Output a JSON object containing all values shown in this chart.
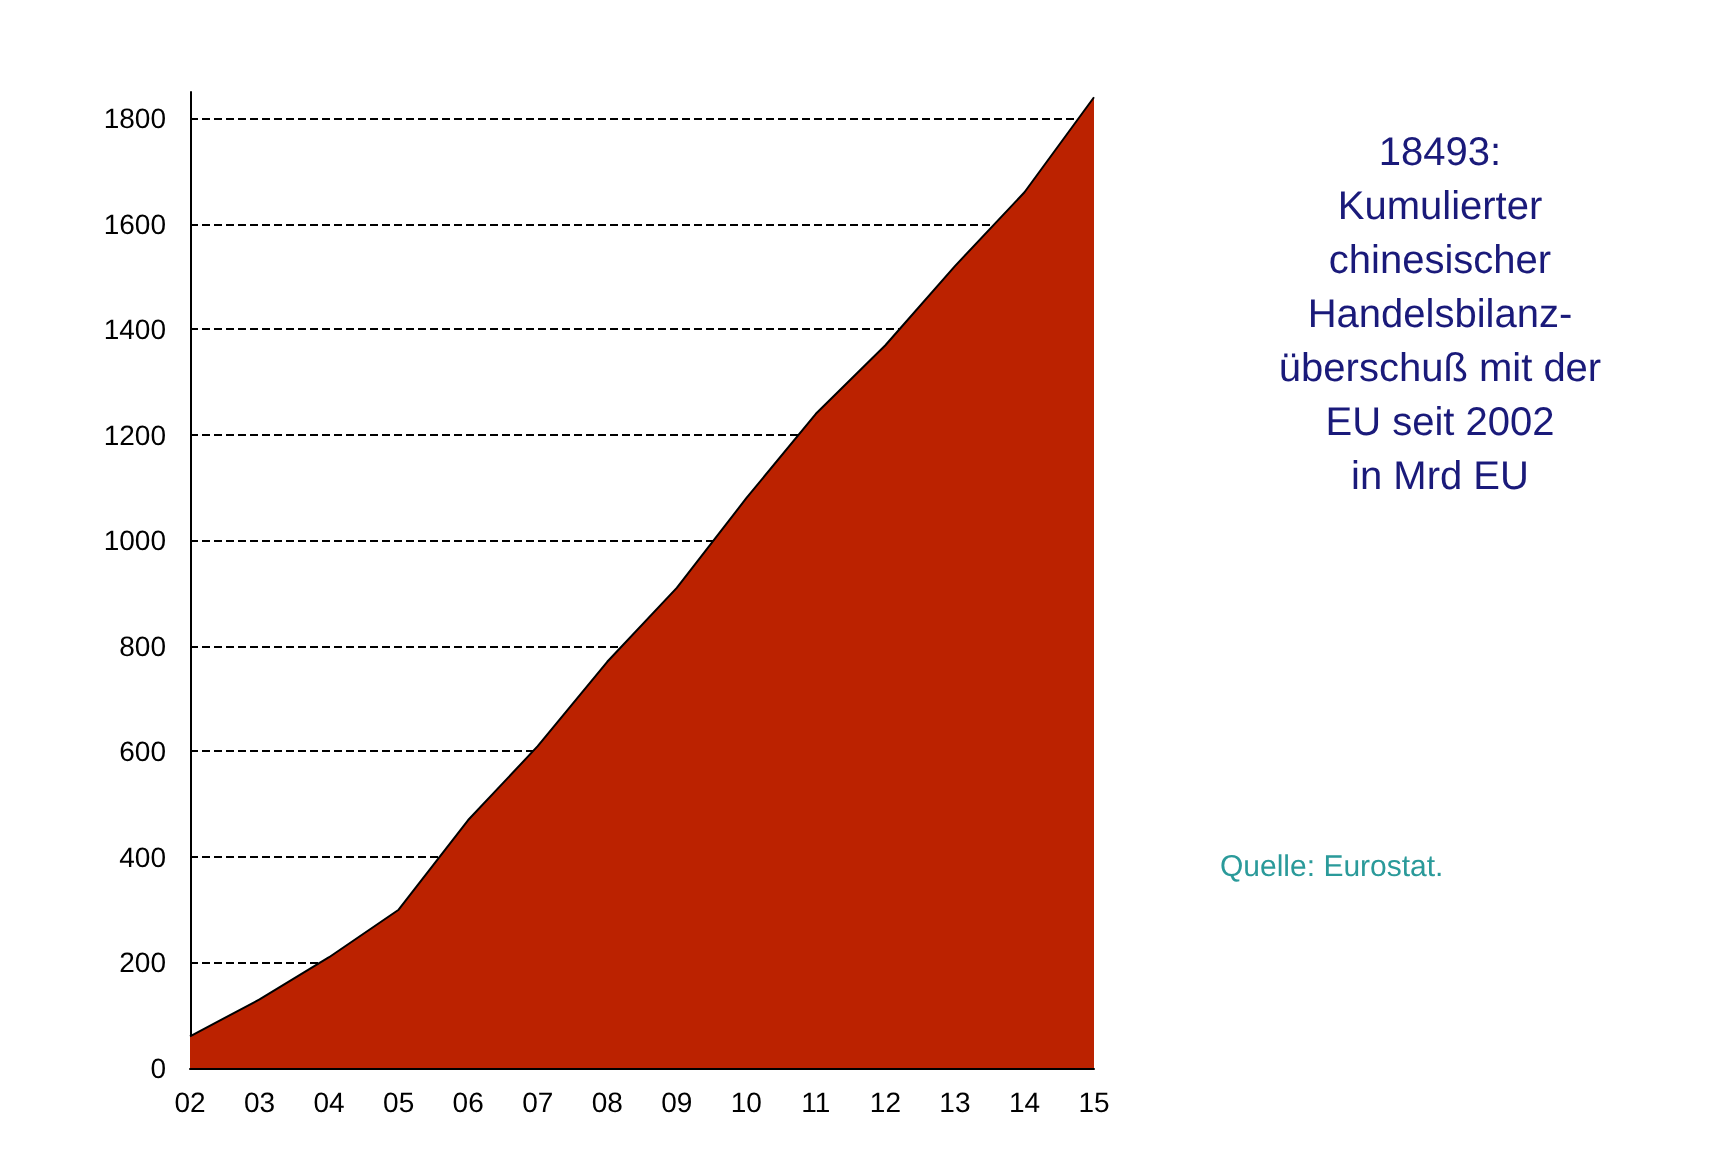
{
  "chart_data": {
    "type": "area",
    "title": "18493:\nKumulierter\nchinesischer\nHandelsbilanz-\nüberschuß mit der\nEU seit 2002\nin Mrd EU",
    "annotations": [
      "Quelle: Eurostat."
    ],
    "categories": [
      "02",
      "03",
      "04",
      "05",
      "06",
      "07",
      "08",
      "09",
      "10",
      "11",
      "12",
      "13",
      "14",
      "15"
    ],
    "series": [
      {
        "color": "#bb2200",
        "values": [
          60,
          130,
          210,
          300,
          470,
          610,
          770,
          910,
          1080,
          1240,
          1370,
          1520,
          1660,
          1840
        ]
      }
    ],
    "ylim": [
      0,
      1850
    ],
    "yticks": [
      0,
      200,
      400,
      600,
      800,
      1000,
      1200,
      1400,
      1600,
      1800
    ],
    "grid": "y",
    "marker": "none",
    "line_style": "solid"
  }
}
